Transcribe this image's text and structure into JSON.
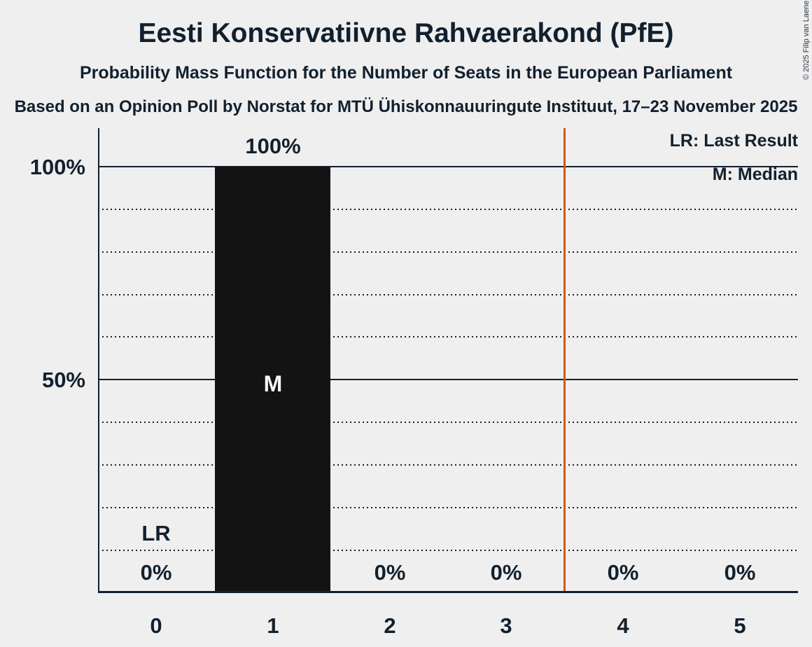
{
  "title": "Eesti Konservatiivne Rahvaerakond (PfE)",
  "subtitle": "Probability Mass Function for the Number of Seats in the European Parliament",
  "source_line": "Based on an Opinion Poll by Norstat for MTÜ Ühiskonnauuringute Instituut, 17–23 November 2025",
  "copyright": "© 2025 Filip van Laenen",
  "legend": {
    "lr_label": "LR: Last Result",
    "m_label": "M: Median"
  },
  "y_axis": {
    "tick_100": "100%",
    "tick_50": "50%"
  },
  "chart_data": {
    "type": "bar",
    "categories": [
      "0",
      "1",
      "2",
      "3",
      "4",
      "5"
    ],
    "values": [
      0,
      100,
      0,
      0,
      0,
      0
    ],
    "value_labels": [
      "0%",
      "100%",
      "0%",
      "0%",
      "0%",
      "0%"
    ],
    "title": "Eesti Konservatiivne Rahvaerakond (PfE)",
    "xlabel": "",
    "ylabel": "",
    "ylim": [
      0,
      100
    ],
    "y_tick_labels_shown": [
      "100%",
      "50%"
    ],
    "gridlines_pct": [
      10,
      20,
      30,
      40,
      60,
      70,
      80,
      90
    ],
    "solid_lines_pct": [
      50,
      100
    ],
    "grid_style": "dotted",
    "legend_position": "top-right",
    "median_marker": "M",
    "median_category": "1",
    "lr_marker": "LR",
    "last_result_category": "0",
    "vertical_line": {
      "x": 3.5,
      "color": "#d2580a"
    },
    "bar_color": "#131313",
    "background_color": "#efefef",
    "ink_color": "#12202e"
  }
}
